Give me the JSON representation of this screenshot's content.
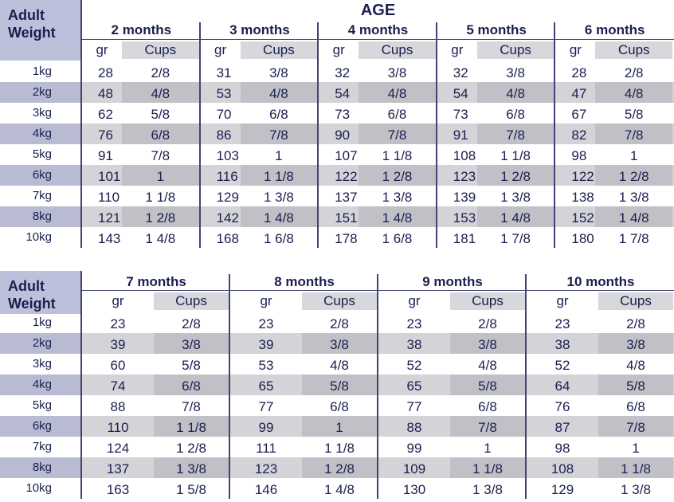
{
  "table1": {
    "header_label": "Adult\nWeight",
    "age_title": "AGE",
    "months": [
      "2 months",
      "3 months",
      "4 months",
      "5 months",
      "6 months"
    ],
    "unit_gr": "gr",
    "unit_cups": "Cups",
    "rows": [
      {
        "weight": "1kg",
        "vals": [
          [
            "28",
            "2/8"
          ],
          [
            "31",
            "3/8"
          ],
          [
            "32",
            "3/8"
          ],
          [
            "32",
            "3/8"
          ],
          [
            "28",
            "2/8"
          ]
        ]
      },
      {
        "weight": "2kg",
        "vals": [
          [
            "48",
            "4/8"
          ],
          [
            "53",
            "4/8"
          ],
          [
            "54",
            "4/8"
          ],
          [
            "54",
            "4/8"
          ],
          [
            "47",
            "4/8"
          ]
        ]
      },
      {
        "weight": "3kg",
        "vals": [
          [
            "62",
            "5/8"
          ],
          [
            "70",
            "6/8"
          ],
          [
            "73",
            "6/8"
          ],
          [
            "73",
            "6/8"
          ],
          [
            "67",
            "5/8"
          ]
        ]
      },
      {
        "weight": "4kg",
        "vals": [
          [
            "76",
            "6/8"
          ],
          [
            "86",
            "7/8"
          ],
          [
            "90",
            "7/8"
          ],
          [
            "91",
            "7/8"
          ],
          [
            "82",
            "7/8"
          ]
        ]
      },
      {
        "weight": "5kg",
        "vals": [
          [
            "91",
            "7/8"
          ],
          [
            "103",
            "1"
          ],
          [
            "107",
            "1 1/8"
          ],
          [
            "108",
            "1 1/8"
          ],
          [
            "98",
            "1"
          ]
        ]
      },
      {
        "weight": "6kg",
        "vals": [
          [
            "101",
            "1"
          ],
          [
            "116",
            "1 1/8"
          ],
          [
            "122",
            "1 2/8"
          ],
          [
            "123",
            "1 2/8"
          ],
          [
            "122",
            "1 2/8"
          ]
        ]
      },
      {
        "weight": "7kg",
        "vals": [
          [
            "110",
            "1 1/8"
          ],
          [
            "129",
            "1 3/8"
          ],
          [
            "137",
            "1 3/8"
          ],
          [
            "139",
            "1 3/8"
          ],
          [
            "138",
            "1 3/8"
          ]
        ]
      },
      {
        "weight": "8kg",
        "vals": [
          [
            "121",
            "1 2/8"
          ],
          [
            "142",
            "1 4/8"
          ],
          [
            "151",
            "1 4/8"
          ],
          [
            "153",
            "1 4/8"
          ],
          [
            "152",
            "1 4/8"
          ]
        ]
      },
      {
        "weight": "10kg",
        "vals": [
          [
            "143",
            "1 4/8"
          ],
          [
            "168",
            "1 6/8"
          ],
          [
            "178",
            "1 6/8"
          ],
          [
            "181",
            "1 7/8"
          ],
          [
            "180",
            "1 7/8"
          ]
        ]
      }
    ]
  },
  "table2": {
    "header_label": "Adult\nWeight",
    "months": [
      "7 months",
      "8 months",
      "9 months",
      "10 months"
    ],
    "unit_gr": "gr",
    "unit_cups": "Cups",
    "rows": [
      {
        "weight": "1kg",
        "vals": [
          [
            "23",
            "2/8"
          ],
          [
            "23",
            "2/8"
          ],
          [
            "23",
            "2/8"
          ],
          [
            "23",
            "2/8"
          ]
        ]
      },
      {
        "weight": "2kg",
        "vals": [
          [
            "39",
            "3/8"
          ],
          [
            "39",
            "3/8"
          ],
          [
            "38",
            "3/8"
          ],
          [
            "38",
            "3/8"
          ]
        ]
      },
      {
        "weight": "3kg",
        "vals": [
          [
            "60",
            "5/8"
          ],
          [
            "53",
            "4/8"
          ],
          [
            "52",
            "4/8"
          ],
          [
            "52",
            "4/8"
          ]
        ]
      },
      {
        "weight": "4kg",
        "vals": [
          [
            "74",
            "6/8"
          ],
          [
            "65",
            "5/8"
          ],
          [
            "65",
            "5/8"
          ],
          [
            "64",
            "5/8"
          ]
        ]
      },
      {
        "weight": "5kg",
        "vals": [
          [
            "88",
            "7/8"
          ],
          [
            "77",
            "6/8"
          ],
          [
            "77",
            "6/8"
          ],
          [
            "76",
            "6/8"
          ]
        ]
      },
      {
        "weight": "6kg",
        "vals": [
          [
            "110",
            "1 1/8"
          ],
          [
            "99",
            "1"
          ],
          [
            "88",
            "7/8"
          ],
          [
            "87",
            "7/8"
          ]
        ]
      },
      {
        "weight": "7kg",
        "vals": [
          [
            "124",
            "1 2/8"
          ],
          [
            "111",
            "1 1/8"
          ],
          [
            "99",
            "1"
          ],
          [
            "98",
            "1"
          ]
        ]
      },
      {
        "weight": "8kg",
        "vals": [
          [
            "137",
            "1 3/8"
          ],
          [
            "123",
            "1 2/8"
          ],
          [
            "109",
            "1 1/8"
          ],
          [
            "108",
            "1 1/8"
          ]
        ]
      },
      {
        "weight": "10kg",
        "vals": [
          [
            "163",
            "1 5/8"
          ],
          [
            "146",
            "1 4/8"
          ],
          [
            "130",
            "1 3/8"
          ],
          [
            "129",
            "1 3/8"
          ]
        ]
      }
    ]
  }
}
